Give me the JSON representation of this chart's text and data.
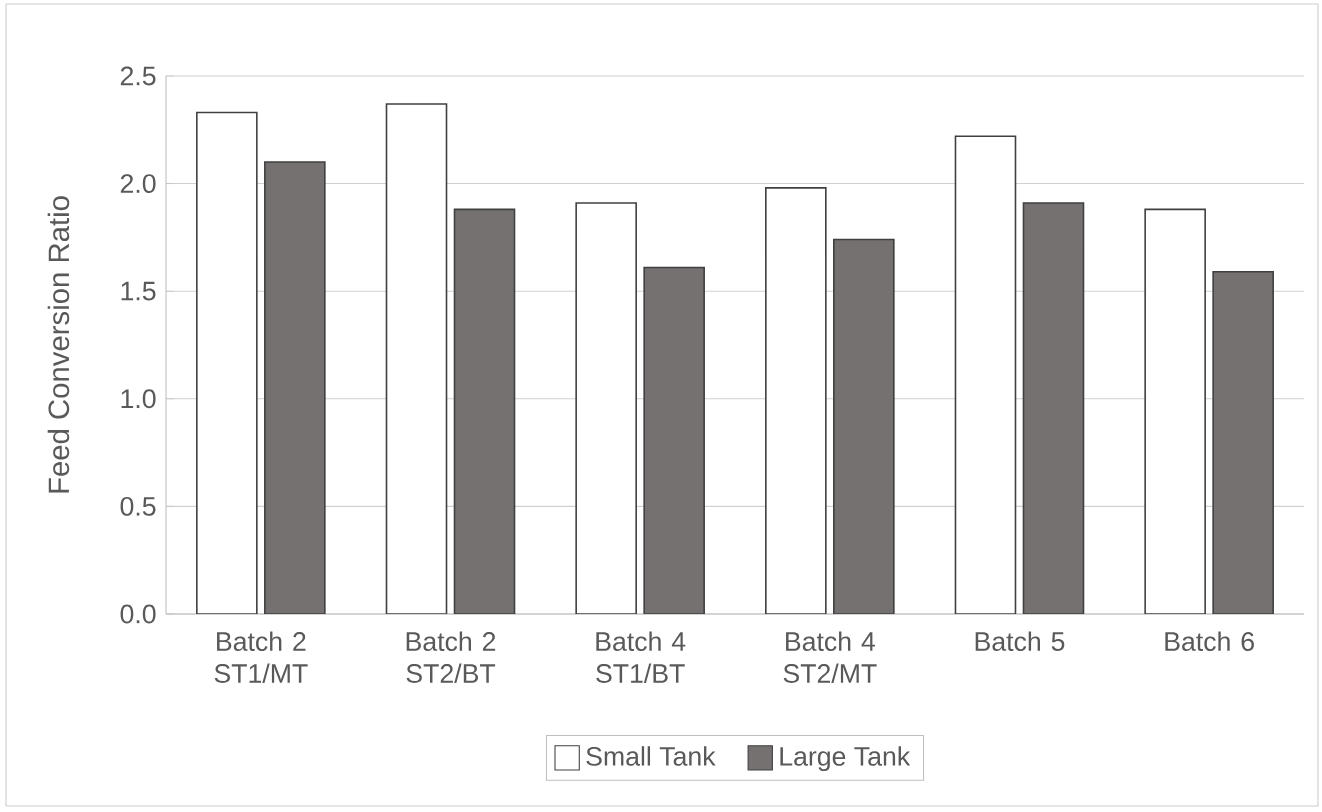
{
  "chart_data": {
    "type": "bar",
    "ylabel": "Feed Conversion Ratio",
    "categories": [
      "Batch 2 ST1/MT",
      "Batch 2 ST2/BT",
      "Batch 4 ST1/BT",
      "Batch 4 ST2/MT",
      "Batch 5",
      "Batch 6"
    ],
    "series": [
      {
        "name": "Small Tank",
        "color": "#ffffff",
        "values": [
          2.33,
          2.37,
          1.91,
          1.98,
          2.22,
          1.88
        ]
      },
      {
        "name": "Large Tank",
        "color": "#757171",
        "values": [
          2.1,
          1.88,
          1.61,
          1.74,
          1.91,
          1.59
        ]
      }
    ],
    "ylim": [
      0,
      2.5
    ],
    "yticks": [
      {
        "value": 0,
        "label": "0.0"
      },
      0.5,
      {
        "value": 1,
        "label": "1.0"
      },
      1.5,
      {
        "value": 2,
        "label": "2.0"
      },
      2.5
    ],
    "grid": "y",
    "legend": "bottom"
  }
}
